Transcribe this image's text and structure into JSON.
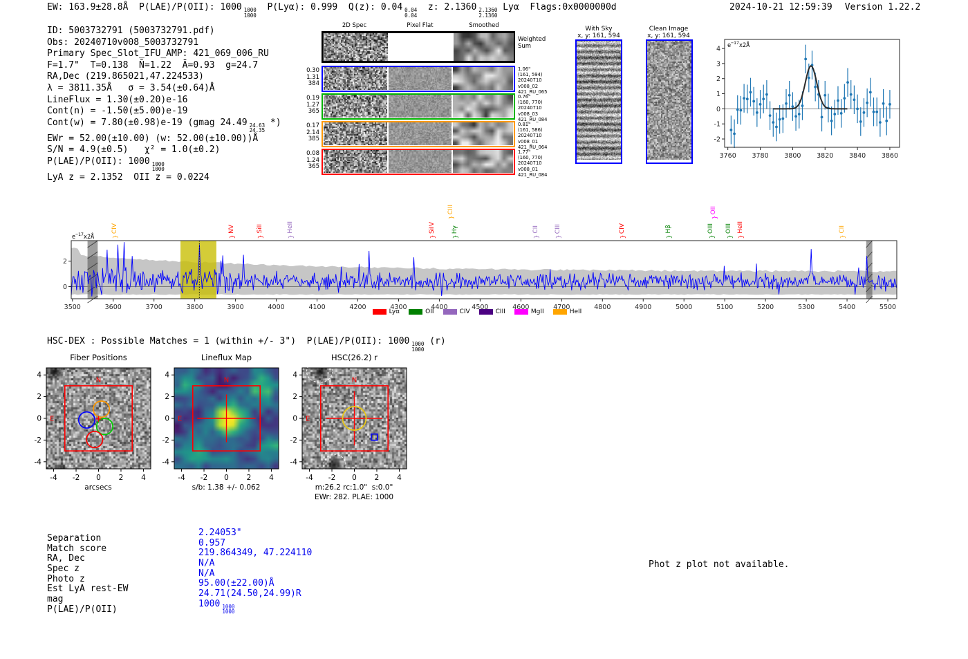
{
  "header": {
    "summary_segments": [
      {
        "t": "EW: 163.9±28.8Å  P(LAE)/P(OII): 1000"
      },
      {
        "f": [
          "1000",
          "1000"
        ]
      },
      {
        "t": "  P(Lyα): 0.999  Q(z): 0.04"
      },
      {
        "f": [
          "0.04",
          "0.04"
        ]
      },
      {
        "t": "  z: 2.1360"
      },
      {
        "f": [
          "2.1360",
          "2.1360"
        ]
      },
      {
        "t": " Lyα  Flags:0x0000000d"
      }
    ],
    "datetime": "2024-10-21 12:59:39",
    "version": "Version 1.22.2"
  },
  "flux_label": {
    "pre": "e",
    "sup": "−17",
    "post": "x2Å"
  },
  "info_block": {
    "lines": [
      [
        {
          "t": "ID: 5003732791 (5003732791.pdf)"
        }
      ],
      [
        {
          "t": "Obs: 20240710v008_5003732791"
        }
      ],
      [
        {
          "t": "Primary Spec_Slot_IFU_AMP: 421_069_006_RU"
        }
      ],
      [
        {
          "t": "F=1.7\"  T=0.138  N̄=1.22  Ā=0.93  g=24.7"
        }
      ],
      [
        {
          "t": "RA,Dec (219.865021,47.224533)"
        }
      ],
      [
        {
          "t": "λ = 3811.35Å   σ = 3.54(±0.64)Å"
        }
      ],
      [
        {
          "t": "LineFlux = 1.30(±0.20)e-16"
        }
      ],
      [
        {
          "t": "Cont(n) = -1.50(±5.00)e-19"
        }
      ],
      [
        {
          "t": "Cont(w) = 7.80(±0.98)e-19 (gmag 24.49"
        },
        {
          "f": [
            "24.63",
            "24.35"
          ]
        },
        {
          "t": " *)"
        }
      ],
      [
        {
          "t": "EWr = 52.00(±10.00) (w: 52.00(±10.00))Å"
        }
      ],
      [
        {
          "t": "S/N = 4.9(±0.5)   χ² = 1.0(±0.2)"
        }
      ],
      [
        {
          "t": "P(LAE)/P(OII): 1000"
        },
        {
          "f": [
            "1000",
            "1000"
          ]
        }
      ],
      [
        {
          "t": "LyA z = 2.1352  OII z = 0.0224"
        }
      ]
    ]
  },
  "spec2d": {
    "col_headers": [
      "2D Spec",
      "Pixel Flat",
      "Smoothed"
    ],
    "rows": [
      {
        "border": "#000000",
        "left": [],
        "right": [
          "Weighted",
          "Sum"
        ],
        "big_right": true,
        "flat_blank": true,
        "seed": 11
      },
      {
        "border": "#0000ff",
        "left": [
          "0.30",
          "1.31",
          "384"
        ],
        "right": [
          "1.06\"",
          "(161, 594)",
          "20240710",
          "v008_02",
          "421_RU_065"
        ],
        "seed": 21
      },
      {
        "border": "#00b300",
        "left": [
          "0.19",
          "1.27",
          "365"
        ],
        "right": [
          "0.76\"",
          "(160, 770)",
          "20240710",
          "v008_03",
          "421_RU_084"
        ],
        "seed": 31
      },
      {
        "border": "#ff9900",
        "left": [
          "0.17",
          "2.14",
          "385"
        ],
        "right": [
          "0.81\"",
          "(161, 586)",
          "20240710",
          "v008_01",
          "421_RU_064"
        ],
        "seed": 41
      },
      {
        "border": "#ff0000",
        "left": [
          "0.08",
          "1.24",
          "365"
        ],
        "right": [
          "1.77\"",
          "(160, 770)",
          "20240710",
          "v008_01",
          "421_RU_084"
        ],
        "seed": 51
      }
    ]
  },
  "sky_panels": {
    "with_sky": {
      "title": "With Sky",
      "subtitle": "x, y: 161, 594"
    },
    "clean": {
      "title": "Clean Image",
      "subtitle": "x, y: 161, 594"
    }
  },
  "hscdex_segments": [
    {
      "t": "HSC-DEX : Possible Matches = 1 (within +/- 3\")  P(LAE)/P(OII): 1000"
    },
    {
      "f": [
        "1000",
        "1000"
      ]
    },
    {
      "t": " (r)"
    }
  ],
  "photz_note": "Phot z plot not available.",
  "match_table": {
    "rows": [
      {
        "label": "Separation",
        "value": [
          {
            "t": "2.24053\""
          }
        ]
      },
      {
        "label": "Match score",
        "value": [
          {
            "t": "0.957"
          }
        ]
      },
      {
        "label": "RA, Dec",
        "value": [
          {
            "t": "219.864349, 47.224110"
          }
        ]
      },
      {
        "label": "Spec z",
        "value": [
          {
            "t": "N/A"
          }
        ]
      },
      {
        "label": "Photo z",
        "value": [
          {
            "t": "N/A"
          }
        ]
      },
      {
        "label": "Est LyA rest-EW",
        "value": [
          {
            "t": "95.00(±22.00)Å"
          }
        ]
      },
      {
        "label": "mag",
        "value": [
          {
            "t": "24.71(24.50,24.99)R"
          }
        ]
      },
      {
        "label": "P(LAE)/P(OII)",
        "value": [
          {
            "t": "1000"
          },
          {
            "f": [
              "1000",
              "1000"
            ]
          }
        ]
      }
    ]
  },
  "chart_data": [
    {
      "id": "line_fit_plot",
      "type": "scatter",
      "xlim": [
        3758,
        3866
      ],
      "ylim": [
        -2.55,
        4.6
      ],
      "xticks": [
        3760,
        3780,
        3800,
        3820,
        3840,
        3860
      ],
      "yticks": [
        -2,
        -1,
        0,
        1,
        2,
        3,
        4
      ],
      "yerr": 0.95,
      "fit": {
        "center": 3811.35,
        "sigma": 3.54,
        "amplitude": 2.85
      },
      "colors": {
        "point": "#1f77b4",
        "fit": "#2b2b2b"
      },
      "points": [
        [
          3762,
          -1.4
        ],
        [
          3764,
          -1.65
        ],
        [
          3766,
          -0.05
        ],
        [
          3768,
          -0.1
        ],
        [
          3770,
          0.7
        ],
        [
          3772,
          0.65
        ],
        [
          3774,
          1.1
        ],
        [
          3776,
          0.5
        ],
        [
          3778,
          -0.25
        ],
        [
          3780,
          0.3
        ],
        [
          3782,
          0.65
        ],
        [
          3784,
          0.95
        ],
        [
          3786,
          -0.45
        ],
        [
          3788,
          -0.9
        ],
        [
          3790,
          -1.2
        ],
        [
          3792,
          -0.7
        ],
        [
          3794,
          -0.65
        ],
        [
          3796,
          0.35
        ],
        [
          3798,
          0.9
        ],
        [
          3800,
          0.15
        ],
        [
          3802,
          -0.5
        ],
        [
          3804,
          -0.35
        ],
        [
          3806,
          0.2
        ],
        [
          3808,
          3.3
        ],
        [
          3810,
          2.05
        ],
        [
          3812,
          2.9
        ],
        [
          3814,
          1.45
        ],
        [
          3816,
          0.95
        ],
        [
          3818,
          -0.55
        ],
        [
          3820,
          0.9
        ],
        [
          3822,
          0.05
        ],
        [
          3824,
          -0.8
        ],
        [
          3826,
          -0.35
        ],
        [
          3828,
          0.55
        ],
        [
          3830,
          -0.3
        ],
        [
          3832,
          0.7
        ],
        [
          3834,
          1.75
        ],
        [
          3836,
          0.95
        ],
        [
          3838,
          0.6
        ],
        [
          3840,
          0.0
        ],
        [
          3842,
          -0.85
        ],
        [
          3844,
          -0.25
        ],
        [
          3846,
          0.4
        ],
        [
          3848,
          1.1
        ],
        [
          3850,
          -0.2
        ],
        [
          3852,
          -0.2
        ],
        [
          3854,
          -0.9
        ],
        [
          3856,
          0.35
        ],
        [
          3858,
          -0.8
        ],
        [
          3860,
          0.3
        ]
      ]
    },
    {
      "id": "full_spectrum",
      "type": "line",
      "xlim": [
        3497,
        5522
      ],
      "ylim": [
        -0.95,
        3.61
      ],
      "xticks": [
        3500,
        3600,
        3700,
        3800,
        3900,
        4000,
        4100,
        4200,
        4300,
        4400,
        4500,
        4600,
        4700,
        4800,
        4900,
        5000,
        5100,
        5200,
        5300,
        5400,
        5500
      ],
      "yticks": [
        0,
        2
      ],
      "line_color": "#0000ff",
      "noise_seed": 7,
      "envelope": {
        "base": 1.17,
        "amp": 1.35,
        "tau": 540,
        "bottom": -0.62,
        "color": "#c6c6c6"
      },
      "highlight_band": {
        "x0": 3765,
        "x1": 3853,
        "color": "rgba(200,190,0,0.78)"
      },
      "vline": 3811.35,
      "hatch_bands": [
        [
          3537,
          3562
        ],
        [
          5447,
          5462
        ]
      ],
      "spikes": [
        [
          3586,
          2.9
        ],
        [
          3612,
          3.3
        ],
        [
          3627,
          3.5
        ],
        [
          3646,
          2.4
        ],
        [
          3811.35,
          3.3
        ],
        [
          3868,
          2.45
        ],
        [
          3920,
          2.5
        ],
        [
          4227,
          2.8
        ],
        [
          4338,
          2.3
        ],
        [
          5313,
          2.95
        ],
        [
          5448,
          2.4
        ]
      ],
      "emission_lines": [
        {
          "wave": 3605,
          "label": "CIV",
          "color": "#ffa500",
          "raised": false
        },
        {
          "wave": 3892,
          "label": "NV",
          "color": "#ff0000",
          "raised": false
        },
        {
          "wave": 3962,
          "label": "SiII",
          "color": "#ff0000",
          "raised": false
        },
        {
          "wave": 4036,
          "label": "HeII",
          "color": "#9467bd",
          "raised": false
        },
        {
          "wave": 4384,
          "label": "SiIV",
          "color": "#ff0000",
          "raised": false
        },
        {
          "wave": 4430,
          "label": "CIII",
          "color": "#ffa500",
          "raised": true
        },
        {
          "wave": 4440,
          "label": "Hγ",
          "color": "#008000",
          "raised": false
        },
        {
          "wave": 4638,
          "label": "CII",
          "color": "#9467bd",
          "raised": false
        },
        {
          "wave": 4693,
          "label": "CIII",
          "color": "#9467bd",
          "raised": false
        },
        {
          "wave": 4850,
          "label": "CIV",
          "color": "#ff0000",
          "raised": false
        },
        {
          "wave": 4964,
          "label": "Hβ",
          "color": "#008000",
          "raised": false
        },
        {
          "wave": 5068,
          "label": "OIII",
          "color": "#008000",
          "raised": false
        },
        {
          "wave": 5075,
          "label": "OII",
          "color": "#ff00ff",
          "raised": true
        },
        {
          "wave": 5112,
          "label": "OIII",
          "color": "#008000",
          "raised": false
        },
        {
          "wave": 5140,
          "label": "HeII",
          "color": "#ff0000",
          "raised": false
        },
        {
          "wave": 5390,
          "label": "CII",
          "color": "#ffa500",
          "raised": false
        }
      ],
      "legend": [
        {
          "label": "Lyα",
          "color": "#ff0000"
        },
        {
          "label": "OII",
          "color": "#008000"
        },
        {
          "label": "CIV",
          "color": "#9467bd"
        },
        {
          "label": "CIII",
          "color": "#4b0082"
        },
        {
          "label": "MgII",
          "color": "#ff00ff"
        },
        {
          "label": "HeII",
          "color": "#ffa500"
        }
      ]
    },
    {
      "id": "fiber_positions",
      "type": "image-overlay",
      "title": "Fiber Positions",
      "xlabel": "arcsecs",
      "ticks": [
        -4,
        -2,
        0,
        2,
        4
      ],
      "range": 4.65,
      "square": 3,
      "compass": [
        "N",
        "E"
      ],
      "circles": [
        {
          "x": -1.05,
          "y": -0.15,
          "r": 0.72,
          "color": "#0000ff"
        },
        {
          "x": 0.25,
          "y": 0.85,
          "r": 0.72,
          "color": "#ff9900"
        },
        {
          "x": 0.55,
          "y": -0.75,
          "r": 0.72,
          "color": "#00cc00"
        },
        {
          "x": -0.35,
          "y": -1.95,
          "r": 0.72,
          "color": "#ff0000"
        }
      ],
      "cross": {
        "x": 0,
        "y": -0.05
      }
    },
    {
      "id": "lineflux_map",
      "type": "heatmap",
      "title": "Lineflux Map",
      "caption": "s/b: 1.38 +/- 0.062",
      "ticks": [
        -4,
        -2,
        0,
        2,
        4
      ],
      "range": 4.65,
      "square": 3,
      "compass": [
        "N",
        "E"
      ],
      "crosshair": {
        "h": 2.6,
        "v": 2.2
      }
    },
    {
      "id": "hsc_cutout",
      "type": "image-overlay",
      "title": "HSC(26.2) r",
      "captions": [
        "m:26.2 rc:1.0\"  s:0.0\"",
        "EWr: 282. PLAE: 1000"
      ],
      "ticks": [
        -4,
        -2,
        0,
        2,
        4
      ],
      "range": 4.65,
      "square": 3,
      "compass": [
        "N",
        "E"
      ],
      "crosshair": {
        "h": 2.5,
        "v": 2.5
      },
      "yellow_circle": {
        "x": 0,
        "y": 0,
        "r": 1.05
      },
      "blue_square": {
        "x": 1.78,
        "y": -1.72,
        "size": 0.55
      },
      "dashed": [
        {
          "type": "ellipse",
          "x": -3.1,
          "y": 4.3,
          "rx": 1.15,
          "ry": 0.95
        },
        {
          "type": "circle",
          "x": -1.75,
          "y": -4.35,
          "r": 1.0
        }
      ]
    }
  ]
}
